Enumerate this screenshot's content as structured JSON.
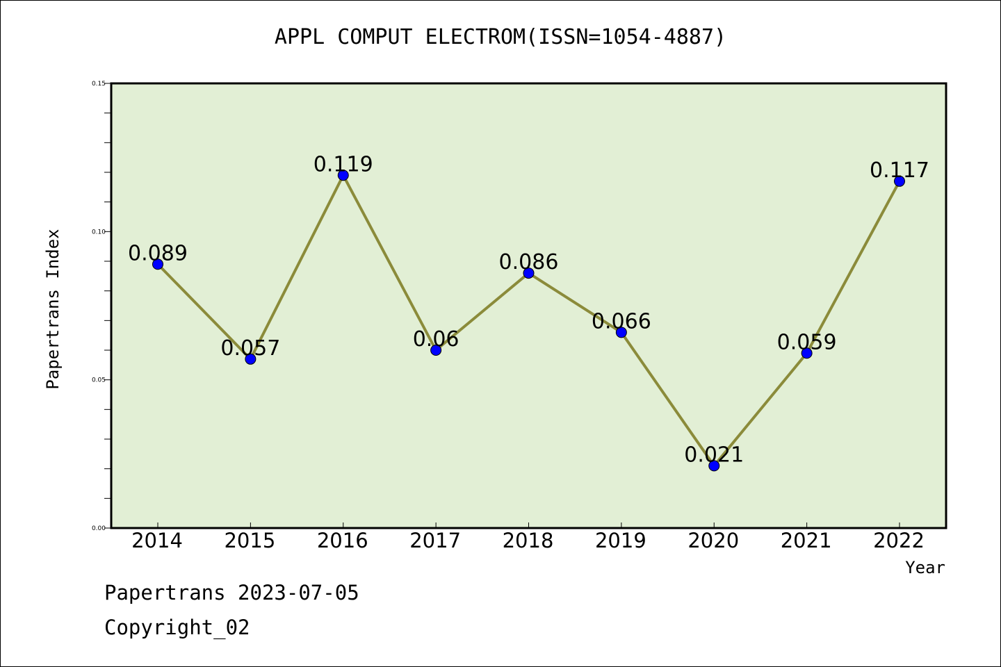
{
  "chart_data": {
    "type": "line",
    "title": "APPL COMPUT ELECTROM(ISSN=1054-4887)",
    "xlabel": "Year",
    "ylabel": "Papertrans Index",
    "categories": [
      "2014",
      "2015",
      "2016",
      "2017",
      "2018",
      "2019",
      "2020",
      "2021",
      "2022"
    ],
    "values": [
      0.089,
      0.057,
      0.119,
      0.06,
      0.086,
      0.066,
      0.021,
      0.059,
      0.117
    ],
    "value_labels": [
      "0.089",
      "0.057",
      "0.119",
      "0.06",
      "0.086",
      "0.066",
      "0.021",
      "0.059",
      "0.117"
    ],
    "ylim": [
      0,
      0.15
    ],
    "yticks": [
      "0.00",
      "0.05",
      "0.10",
      "0.15"
    ],
    "grid": false,
    "colors": {
      "line": "#8b8b3a",
      "marker": "#0000ff",
      "plot_background": "#e2efd5"
    }
  },
  "footer": {
    "source": "Papertrans 2023-07-05",
    "copyright": "Copyright_02"
  }
}
